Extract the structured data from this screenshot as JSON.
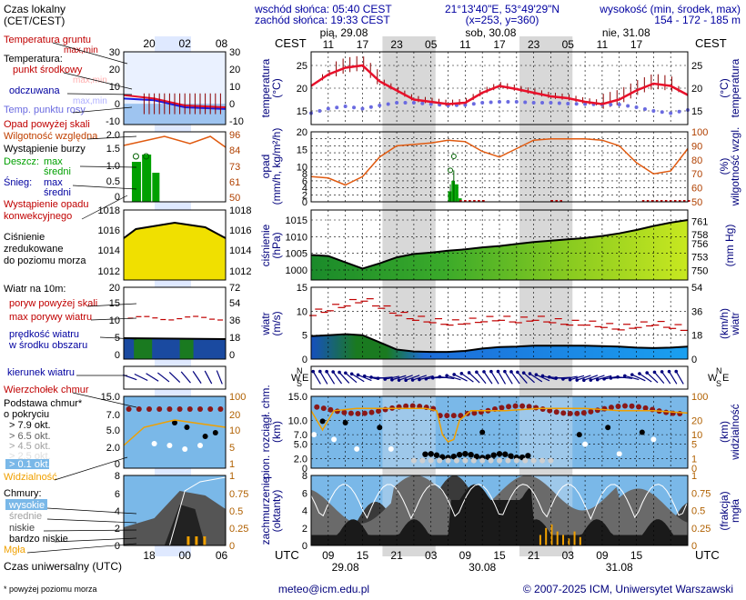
{
  "header": {
    "sunrise": "wschód słońca: 05:40 CEST",
    "sunset": "zachód słońca: 19:33 CEST",
    "coords": "21°13'40\"E, 53°49'29\"N",
    "grid": "(x=253, y=360)",
    "elevation_label": "wysokość (min, środek, max)",
    "elevation_values": "154 - 172 - 185 m"
  },
  "legend": {
    "time_label": "Czas lokalny",
    "time_sub": "(CET/CEST)",
    "local_ticks": [
      "20",
      "02",
      "08"
    ],
    "utc_ticks": [
      "18",
      "00",
      "06"
    ],
    "temp_ground": "Temperatura gruntu",
    "temp_ground_sub": "max,min",
    "temperature": "Temperatura:",
    "dew_mid": "punkt środkowy",
    "max_min": "max,min",
    "felt": "odczuwana",
    "felt_sub": "max,min",
    "dew_point": "Temp. punktu rosy",
    "precip_over": "Opad powyżej skali",
    "humidity": "Wilgotność względna",
    "storm": "Wystąpienie burzy",
    "rain": "Deszcz:",
    "rain_max": "max",
    "rain_mid": "średni",
    "snow": "Śnieg:",
    "snow_max": "max",
    "snow_mid": "średni",
    "conv": "Wystąpienie opadu",
    "conv2": "konwekcyjnego",
    "pressure": "Ciśnienie",
    "pressure2": "zredukowane",
    "pressure3": "do poziomu morza",
    "wind": "Wiatr na 10m:",
    "gust_over": "poryw powyżej skali",
    "gust_max": "max porywy wiatru",
    "wind_speed": "prędkość wiatru",
    "wind_speed2": "w środku obszaru",
    "wind_dir": "kierunek wiatru",
    "cloud_top": "Wierzchołek chmur",
    "cloud_base": "Podstawa chmur*",
    "cloud_base2": "o pokryciu",
    "okt1": "> 7.9 okt.",
    "okt2": "> 6.5 okt.",
    "okt3": "> 4.5 okt.",
    "okt4": "> 2.5 okt.",
    "okt5": "> 0.1 okt.",
    "visibility": "Widzialność",
    "clouds": "Chmury:",
    "cl_high": "wysokie",
    "cl_mid": "średnie",
    "cl_low": "niskie",
    "cl_vlow": "bardzo niskie",
    "fog": "Mgła",
    "utc_label": "Czas uniwersalny (UTC)",
    "footnote": "* powyżej poziomu morza"
  },
  "main": {
    "cest": "CEST",
    "utc": "UTC",
    "days": [
      "pią, 29.08",
      "sob, 30.08",
      "nie, 31.08"
    ],
    "utc_days": [
      "29.08",
      "30.08",
      "31.08"
    ],
    "local_hours": [
      "11",
      "17",
      "23",
      "05",
      "11",
      "17",
      "23",
      "05",
      "11",
      "17"
    ],
    "utc_hours": [
      "09",
      "15",
      "21",
      "03",
      "09",
      "15",
      "21",
      "03",
      "09",
      "15"
    ],
    "y_temp": "temperatura",
    "y_temp_unit": "(°C)",
    "y_precip": "opad",
    "y_precip_unit": "(mm/h, kg/m²/h)",
    "y_hum": "wilgotność wzgl.",
    "y_hum_unit": "(%)",
    "y_press": "ciśnienie",
    "y_press_unit": "(hPa)",
    "y_press_unit2": "(mm Hg)",
    "y_wind": "wiatr",
    "y_wind_unit": "(m/s)",
    "y_wind_unit2": "(km/h)",
    "y_cloud": "pion. rozciągł. chm.",
    "y_cloud_unit": "(km)",
    "y_vis": "widzialność",
    "y_vis_unit": "(km)",
    "y_cover": "zachmurzenie",
    "y_cover_unit": "(oktanty)",
    "y_fog": "mgła",
    "y_fog_unit": "(frakcja)"
  },
  "footer": {
    "email": "meteo@icm.edu.pl",
    "copyright": "© 2007-2025 ICM, Uniwersytet Warszawski"
  },
  "colors": {
    "night_band": "#d8d8d8",
    "temp": "#e8102a",
    "dew": "#6a6ae0",
    "humidity": "#e05a10",
    "pressure_fill": "#a8d820",
    "wind_fill": "#1c6cd8",
    "axis_left": "#c00000",
    "axis_right": "#00007c"
  },
  "chart_data": [
    {
      "type": "line",
      "title": "",
      "ylabel": "temperatura (°C)",
      "ylim": [
        12,
        28
      ],
      "x_hours_utc": [
        6,
        9,
        12,
        15,
        18,
        21,
        24,
        27,
        30,
        33,
        36,
        39,
        42,
        45,
        48,
        51,
        54,
        57,
        60,
        63,
        66,
        69,
        72
      ],
      "series": [
        {
          "name": "punkt środkowy",
          "values": [
            20.5,
            23.0,
            24.5,
            25.0,
            21.5,
            19.5,
            17.5,
            17.0,
            16.5,
            16.8,
            19.0,
            20.5,
            19.8,
            19.0,
            18.2,
            17.8,
            17.0,
            16.5,
            17.5,
            19.5,
            21.0,
            20.5,
            18.5
          ]
        },
        {
          "name": "Temp. punktu rosy",
          "values": [
            14.5,
            15.5,
            16.0,
            15.5,
            16.2,
            16.8,
            16.8,
            16.5,
            16.2,
            16.3,
            16.8,
            17.0,
            17.0,
            16.8,
            16.8,
            16.6,
            16.5,
            16.4,
            16.4,
            15.8,
            15.0,
            14.5,
            15.2
          ]
        }
      ]
    },
    {
      "type": "line",
      "ylabel": "wilgotność wzgl. (%)",
      "ylim": [
        50,
        100
      ],
      "x_hours_utc": [
        6,
        9,
        12,
        15,
        18,
        21,
        24,
        27,
        30,
        33,
        36,
        39,
        42,
        45,
        48,
        51,
        54,
        57,
        60,
        63,
        66,
        69,
        72
      ],
      "values": [
        68,
        67,
        62,
        68,
        82,
        90,
        91,
        92,
        94,
        93,
        86,
        82,
        88,
        94,
        95,
        95,
        95,
        94,
        90,
        78,
        70,
        72,
        88
      ]
    },
    {
      "type": "area",
      "ylabel": "ciśnienie (hPa)",
      "ylim": [
        997,
        1018
      ],
      "x_hours_utc": [
        6,
        9,
        12,
        15,
        18,
        21,
        24,
        27,
        30,
        33,
        36,
        39,
        42,
        45,
        48,
        51,
        54,
        57,
        60,
        63,
        66,
        69,
        72
      ],
      "values": [
        1004.5,
        1004.2,
        1002.3,
        1000.4,
        1002.0,
        1003.8,
        1004.8,
        1005.2,
        1005.8,
        1006.2,
        1006.8,
        1007.2,
        1007.8,
        1008.4,
        1008.8,
        1009.2,
        1009.6,
        1010.2,
        1011.0,
        1012.0,
        1013.2,
        1014.2,
        1015.0
      ]
    },
    {
      "type": "area",
      "ylabel": "wiatr (m/s)",
      "ylim": [
        0,
        15
      ],
      "x_hours_utc": [
        6,
        9,
        12,
        15,
        18,
        21,
        24,
        27,
        30,
        33,
        36,
        39,
        42,
        45,
        48,
        51,
        54,
        57,
        60,
        63,
        66,
        69,
        72
      ],
      "series": [
        {
          "name": "prędkość wiatru",
          "values": [
            4.8,
            5.0,
            5.2,
            5.0,
            3.5,
            2.0,
            1.6,
            1.5,
            1.5,
            1.7,
            2.2,
            2.5,
            2.6,
            2.8,
            2.8,
            2.8,
            2.8,
            2.7,
            2.6,
            2.4,
            2.3,
            2.4,
            2.6
          ]
        },
        {
          "name": "max porywy wiatru",
          "values": [
            9.5,
            10.5,
            11.5,
            12.5,
            11.0,
            9.5,
            8.5,
            8.0,
            7.5,
            7.8,
            8.2,
            8.5,
            8.0,
            8.5,
            8.0,
            7.5,
            7.5,
            7.0,
            6.5,
            7.0,
            7.5,
            6.8,
            6.2
          ]
        }
      ]
    }
  ]
}
